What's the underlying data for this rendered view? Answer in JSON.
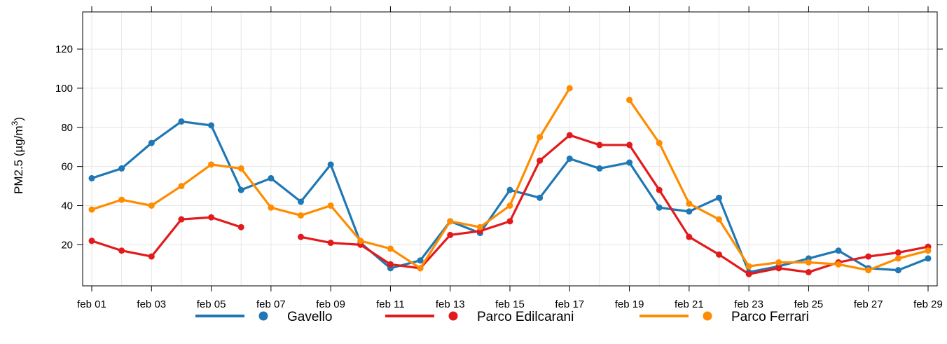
{
  "chart_data": {
    "type": "line",
    "ylabel": "PM2.5 (µg/m³)",
    "ylabel_base": "PM2.5 (",
    "ylabel_unit": "µg/m",
    "ylabel_sup": "3",
    "ylabel_close": ")",
    "xlim": [
      1,
      29.2
    ],
    "ylim": [
      -1,
      139
    ],
    "grid": true,
    "legend_position": "bottom",
    "x_ticks": [
      {
        "day": 1,
        "label": "feb 01"
      },
      {
        "day": 3,
        "label": "feb 03"
      },
      {
        "day": 5,
        "label": "feb 05"
      },
      {
        "day": 7,
        "label": "feb 07"
      },
      {
        "day": 9,
        "label": "feb 09"
      },
      {
        "day": 11,
        "label": "feb 11"
      },
      {
        "day": 13,
        "label": "feb 13"
      },
      {
        "day": 15,
        "label": "feb 15"
      },
      {
        "day": 17,
        "label": "feb 17"
      },
      {
        "day": 19,
        "label": "feb 19"
      },
      {
        "day": 21,
        "label": "feb 21"
      },
      {
        "day": 23,
        "label": "feb 23"
      },
      {
        "day": 25,
        "label": "feb 25"
      },
      {
        "day": 27,
        "label": "feb 27"
      },
      {
        "day": 29,
        "label": "feb 29"
      }
    ],
    "y_ticks": [
      20,
      40,
      60,
      80,
      100,
      120
    ],
    "x": [
      1,
      2,
      3,
      4,
      5,
      6,
      7,
      8,
      9,
      10,
      11,
      12,
      13,
      14,
      15,
      16,
      17,
      18,
      19,
      20,
      21,
      22,
      23,
      24,
      25,
      26,
      27,
      28,
      29
    ],
    "series": [
      {
        "name": "Gavello",
        "color": "#1f77b4",
        "values": [
          54,
          59,
          72,
          83,
          81,
          48,
          54,
          42,
          61,
          21,
          8,
          12,
          32,
          26,
          48,
          44,
          64,
          59,
          62,
          39,
          37,
          44,
          6,
          9,
          13,
          17,
          8,
          7,
          13
        ]
      },
      {
        "name": "Parco Edilcarani",
        "color": "#e31a1c",
        "values": [
          22,
          17,
          14,
          33,
          34,
          29,
          null,
          24,
          21,
          20,
          10,
          8,
          25,
          27,
          32,
          63,
          76,
          71,
          71,
          48,
          24,
          15,
          5,
          8,
          6,
          11,
          14,
          16,
          19
        ]
      },
      {
        "name": "Parco Ferrari",
        "color": "#ff8c00",
        "values": [
          38,
          43,
          40,
          50,
          61,
          59,
          39,
          35,
          40,
          22,
          18,
          8,
          32,
          29,
          40,
          75,
          100,
          null,
          94,
          72,
          41,
          33,
          9,
          11,
          11,
          10,
          7,
          13,
          17
        ]
      }
    ]
  }
}
